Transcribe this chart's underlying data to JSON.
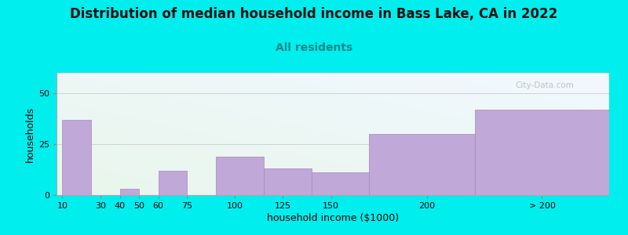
{
  "title": "Distribution of median household income in Bass Lake, CA in 2022",
  "subtitle": "All residents",
  "xlabel": "household income ($1000)",
  "ylabel": "households",
  "background_color": "#00EEEE",
  "bar_color": "#c0a8d8",
  "bar_edge_color": "#a888c0",
  "categories": [
    "10",
    "30",
    "40",
    "50",
    "60",
    "75",
    "100",
    "125",
    "150",
    "200",
    "> 200"
  ],
  "bar_lefts": [
    10,
    30,
    40,
    50,
    60,
    75,
    90,
    115,
    140,
    170,
    225
  ],
  "bar_rights": [
    25,
    40,
    50,
    60,
    75,
    90,
    115,
    140,
    170,
    225,
    295
  ],
  "values": [
    37,
    0,
    3,
    0,
    12,
    0,
    19,
    13,
    11,
    30,
    42
  ],
  "tick_x": [
    10,
    30,
    40,
    50,
    60,
    75,
    100,
    125,
    150,
    200,
    260
  ],
  "tick_labels": [
    "10",
    "30",
    "40",
    "50",
    "60",
    "75",
    "100",
    "125",
    "150",
    "200",
    "> 200"
  ],
  "xlim": [
    7,
    295
  ],
  "ylim": [
    0,
    60
  ],
  "yticks": [
    0,
    25,
    50
  ],
  "title_fontsize": 12,
  "subtitle_fontsize": 10,
  "axis_label_fontsize": 9,
  "tick_fontsize": 8,
  "watermark_text": "City-Data.com"
}
